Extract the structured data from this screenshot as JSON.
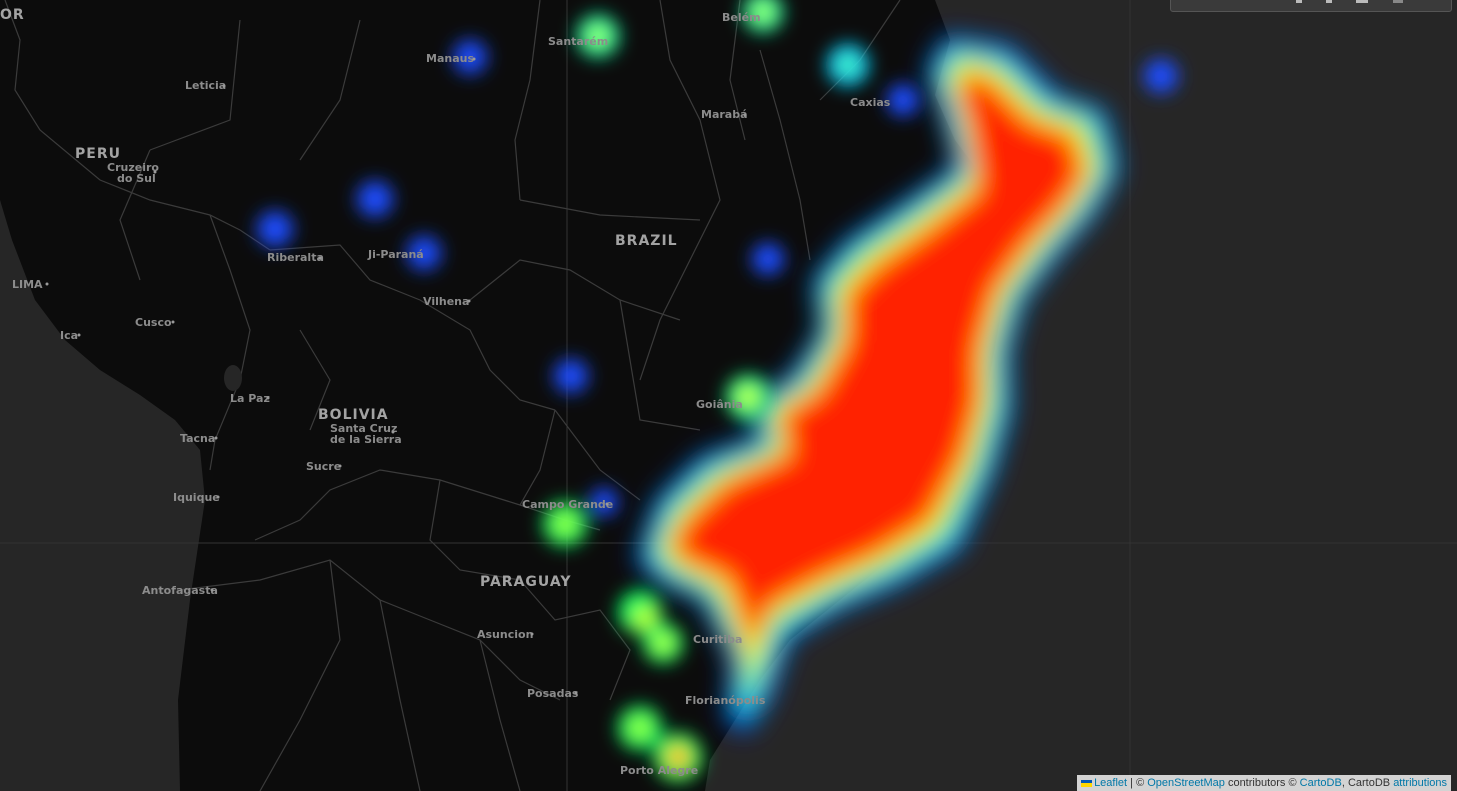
{
  "map": {
    "colors": {
      "ocean": "#262626",
      "land": "#0c0c0c",
      "borders": "#3b3b3b",
      "labels": "#8c8c8c"
    },
    "heat_gradient": [
      "#0000ff",
      "#00ffff",
      "#00ff00",
      "#ffff00",
      "#ff0000"
    ],
    "countries": [
      {
        "id": "brazil",
        "name": "BRAZIL"
      },
      {
        "id": "peru",
        "name": "PERU"
      },
      {
        "id": "bolivia",
        "name": "BOLIVIA"
      },
      {
        "id": "paraguay",
        "name": "PARAGUAY"
      },
      {
        "id": "ecuador",
        "name": "OR"
      }
    ],
    "cities": [
      {
        "id": "manaus",
        "name": "Manaus"
      },
      {
        "id": "santarem",
        "name": "Santarém"
      },
      {
        "id": "belem",
        "name": "Belém"
      },
      {
        "id": "leticia",
        "name": "Leticia"
      },
      {
        "id": "maraba",
        "name": "Marabá"
      },
      {
        "id": "caxias",
        "name": "Caxias"
      },
      {
        "id": "cruzeiro-do-sul",
        "name": "Cruzeiro do Sul"
      },
      {
        "id": "riberalta",
        "name": "Riberalta"
      },
      {
        "id": "ji-parana",
        "name": "Ji-Paraná"
      },
      {
        "id": "vilhena",
        "name": "Vilhena"
      },
      {
        "id": "lima",
        "name": "LIMA"
      },
      {
        "id": "cusco",
        "name": "Cusco"
      },
      {
        "id": "ica",
        "name": "Ica"
      },
      {
        "id": "la-paz",
        "name": "La Paz"
      },
      {
        "id": "santa-cruz",
        "name": "Santa Cruz de la Sierra"
      },
      {
        "id": "tacna",
        "name": "Tacna"
      },
      {
        "id": "sucre",
        "name": "Sucre"
      },
      {
        "id": "iquique",
        "name": "Iquique"
      },
      {
        "id": "goiania",
        "name": "Goiânia"
      },
      {
        "id": "campo-grande",
        "name": "Campo Grande"
      },
      {
        "id": "antofagasta",
        "name": "Antofagasta"
      },
      {
        "id": "asuncion",
        "name": "Asuncion"
      },
      {
        "id": "curitiba",
        "name": "Curitiba"
      },
      {
        "id": "posadas",
        "name": "Posadas"
      },
      {
        "id": "florianopolis",
        "name": "Florianópolis"
      },
      {
        "id": "porto-alegre",
        "name": "Porto Alegre"
      }
    ]
  },
  "attribution": {
    "leaflet": "Leaflet",
    "separator": " | © ",
    "osm": "OpenStreetMap",
    "contributors": " contributors © ",
    "cartodb": "CartoDB",
    "comma": ", CartoDB ",
    "attributions": "attributions"
  }
}
